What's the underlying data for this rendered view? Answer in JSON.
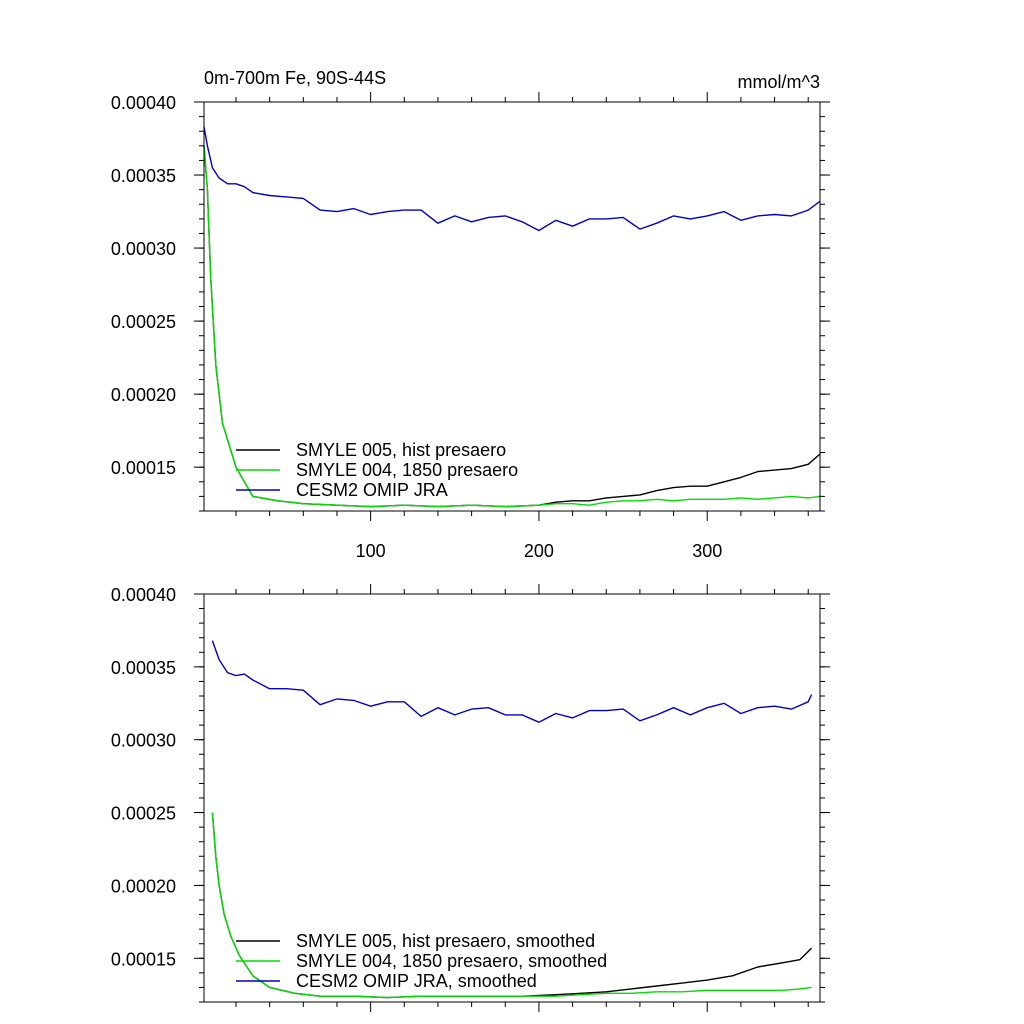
{
  "chart_data": [
    {
      "type": "line",
      "title": "0m-700m Fe, 90S-44S",
      "units": "mmol/m^3",
      "xlim": [
        1,
        367
      ],
      "ylim": [
        0.00012,
        0.0004
      ],
      "yticks": [
        0.00015,
        0.0002,
        0.00025,
        0.0003,
        0.00035,
        0.0004
      ],
      "ytick_labels": [
        "0.00015",
        "0.00020",
        "0.00025",
        "0.00030",
        "0.00035",
        "0.00040"
      ],
      "xticks": [
        100,
        200,
        300
      ],
      "xtick_labels": [
        "100",
        "200",
        "300"
      ],
      "legend_position": "bottom-left",
      "series": [
        {
          "name": "SMYLE 005, hist presaero",
          "color": "#000000",
          "x": [
            1,
            3,
            5,
            8,
            12,
            20,
            30,
            45,
            60,
            80,
            100,
            120,
            140,
            160,
            180,
            200,
            210,
            220,
            230,
            240,
            250,
            260,
            270,
            280,
            290,
            300,
            310,
            320,
            330,
            340,
            350,
            360,
            367
          ],
          "y": [
            0.00037,
            0.00034,
            0.00028,
            0.00022,
            0.00018,
            0.00015,
            0.00013,
            0.000127,
            0.000125,
            0.000124,
            0.000123,
            0.000124,
            0.000123,
            0.000124,
            0.000123,
            0.000124,
            0.000126,
            0.000127,
            0.000127,
            0.000129,
            0.00013,
            0.000131,
            0.000134,
            0.000136,
            0.000137,
            0.000137,
            0.00014,
            0.000143,
            0.000147,
            0.000148,
            0.000149,
            0.000152,
            0.000159
          ]
        },
        {
          "name": "SMYLE 004, 1850 presaero",
          "color": "#00dd00",
          "x": [
            1,
            3,
            5,
            8,
            12,
            20,
            30,
            45,
            60,
            80,
            100,
            120,
            140,
            160,
            180,
            200,
            210,
            220,
            230,
            240,
            250,
            260,
            270,
            280,
            290,
            300,
            310,
            320,
            330,
            340,
            350,
            360,
            367
          ],
          "y": [
            0.00037,
            0.00034,
            0.00028,
            0.00022,
            0.00018,
            0.00015,
            0.00013,
            0.000127,
            0.000125,
            0.000124,
            0.000123,
            0.000124,
            0.000123,
            0.000124,
            0.000123,
            0.000124,
            0.000125,
            0.000125,
            0.000124,
            0.000126,
            0.000127,
            0.000127,
            0.000128,
            0.000127,
            0.000128,
            0.000128,
            0.000128,
            0.000129,
            0.000128,
            0.000129,
            0.00013,
            0.000129,
            0.00013
          ]
        },
        {
          "name": "CESM2 OMIP JRA",
          "color": "#0000cc",
          "x": [
            1,
            3,
            6,
            10,
            15,
            20,
            25,
            30,
            40,
            50,
            60,
            70,
            80,
            90,
            100,
            110,
            120,
            130,
            140,
            150,
            160,
            170,
            180,
            190,
            200,
            210,
            220,
            230,
            240,
            250,
            260,
            270,
            280,
            290,
            300,
            310,
            320,
            330,
            340,
            350,
            360,
            367
          ],
          "y": [
            0.000383,
            0.00037,
            0.000355,
            0.000348,
            0.000344,
            0.000344,
            0.000342,
            0.000338,
            0.000336,
            0.000335,
            0.000334,
            0.000326,
            0.000325,
            0.000327,
            0.000323,
            0.000325,
            0.000326,
            0.000326,
            0.000317,
            0.000322,
            0.000318,
            0.000321,
            0.000322,
            0.000318,
            0.000312,
            0.000319,
            0.000315,
            0.00032,
            0.00032,
            0.000321,
            0.000313,
            0.000317,
            0.000322,
            0.00032,
            0.000322,
            0.000325,
            0.000319,
            0.000322,
            0.000323,
            0.000322,
            0.000326,
            0.000332
          ]
        }
      ]
    },
    {
      "type": "line",
      "xlim": [
        1,
        367
      ],
      "ylim": [
        0.00012,
        0.0004
      ],
      "yticks": [
        0.00015,
        0.0002,
        0.00025,
        0.0003,
        0.00035,
        0.0004
      ],
      "ytick_labels": [
        "0.00015",
        "0.00020",
        "0.00025",
        "0.00030",
        "0.00035",
        "0.00040"
      ],
      "xticks": [
        100,
        200,
        300
      ],
      "legend_position": "bottom-left",
      "series": [
        {
          "name": "SMYLE 005, hist presaero, smoothed",
          "color": "#000000",
          "x": [
            6,
            8,
            10,
            13,
            17,
            22,
            30,
            40,
            55,
            70,
            90,
            110,
            130,
            150,
            170,
            190,
            210,
            225,
            240,
            255,
            270,
            285,
            300,
            315,
            330,
            345,
            355,
            362
          ],
          "y": [
            0.00025,
            0.00022,
            0.0002,
            0.00018,
            0.000165,
            0.000152,
            0.000138,
            0.00013,
            0.000126,
            0.000124,
            0.000124,
            0.000123,
            0.000124,
            0.000124,
            0.000124,
            0.000124,
            0.000125,
            0.000126,
            0.000127,
            0.000129,
            0.000131,
            0.000133,
            0.000135,
            0.000138,
            0.000144,
            0.000147,
            0.000149,
            0.000157
          ]
        },
        {
          "name": "SMYLE 004, 1850 presaero, smoothed",
          "color": "#00dd00",
          "x": [
            6,
            8,
            10,
            13,
            17,
            22,
            30,
            40,
            55,
            70,
            90,
            110,
            130,
            150,
            170,
            190,
            210,
            225,
            240,
            255,
            270,
            285,
            300,
            315,
            330,
            345,
            355,
            362
          ],
          "y": [
            0.00025,
            0.00022,
            0.0002,
            0.00018,
            0.000165,
            0.000152,
            0.000138,
            0.00013,
            0.000126,
            0.000124,
            0.000124,
            0.000123,
            0.000124,
            0.000124,
            0.000124,
            0.000124,
            0.000124,
            0.000125,
            0.000126,
            0.000126,
            0.000127,
            0.000127,
            0.000128,
            0.000128,
            0.000128,
            0.000128,
            0.000129,
            0.00013
          ]
        },
        {
          "name": "CESM2 OMIP JRA, smoothed",
          "color": "#0000cc",
          "x": [
            6,
            10,
            15,
            20,
            25,
            30,
            40,
            50,
            60,
            70,
            80,
            90,
            100,
            110,
            120,
            130,
            140,
            150,
            160,
            170,
            180,
            190,
            200,
            210,
            220,
            230,
            240,
            250,
            260,
            270,
            280,
            290,
            300,
            310,
            320,
            330,
            340,
            350,
            360,
            362
          ],
          "y": [
            0.000368,
            0.000355,
            0.000346,
            0.000344,
            0.000345,
            0.000341,
            0.000335,
            0.000335,
            0.000334,
            0.000324,
            0.000328,
            0.000327,
            0.000323,
            0.000326,
            0.000326,
            0.000316,
            0.000322,
            0.000317,
            0.000321,
            0.000322,
            0.000317,
            0.000317,
            0.000312,
            0.000318,
            0.000315,
            0.00032,
            0.00032,
            0.000321,
            0.000313,
            0.000317,
            0.000322,
            0.000317,
            0.000322,
            0.000325,
            0.000318,
            0.000322,
            0.000323,
            0.000321,
            0.000326,
            0.000331
          ]
        }
      ]
    }
  ]
}
